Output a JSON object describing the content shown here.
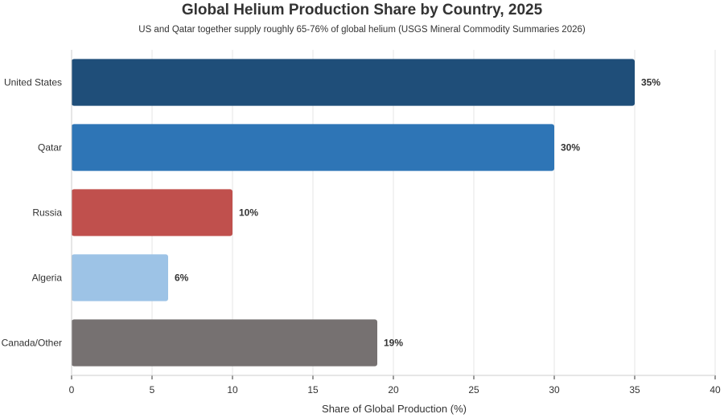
{
  "chart_data": {
    "type": "bar",
    "orientation": "horizontal",
    "title": "Global Helium Production Share by Country, 2025",
    "subtitle": "US and Qatar together supply roughly 65-76% of global helium (USGS Mineral Commodity Summaries 2026)",
    "xlabel": "Share of Global Production (%)",
    "ylabel": "",
    "xlim": [
      0,
      40
    ],
    "xticks": [
      0,
      5,
      10,
      15,
      20,
      25,
      30,
      35,
      40
    ],
    "grid": true,
    "categories": [
      "United States",
      "Qatar",
      "Russia",
      "Algeria",
      "Canada/Other"
    ],
    "values": [
      35,
      30,
      10,
      6,
      19
    ],
    "value_labels": [
      "35%",
      "30%",
      "10%",
      "6%",
      "19%"
    ],
    "colors": [
      "#1f4e79",
      "#2e75b6",
      "#c0504d",
      "#9dc3e6",
      "#767171"
    ]
  }
}
